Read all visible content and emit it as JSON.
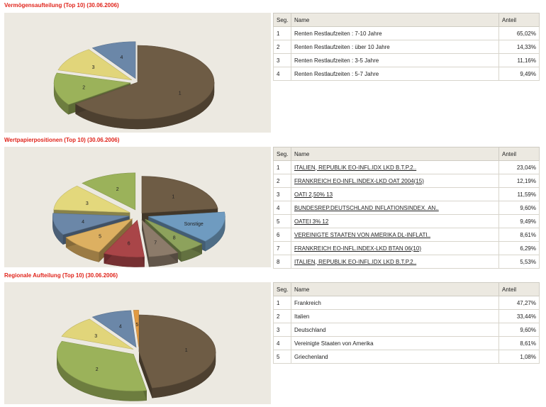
{
  "sections": [
    {
      "title": "Vermögensaufteilung (Top 10) (30.06.2006)",
      "headers": {
        "seg": "Seg.",
        "name": "Name",
        "value": "Anteil"
      },
      "rows": [
        {
          "seg": "1",
          "name": "Renten Restlaufzeiten : 7-10 Jahre",
          "value": "65,02%"
        },
        {
          "seg": "2",
          "name": "Renten Restlaufzeiten : über 10 Jahre",
          "value": "14,33%"
        },
        {
          "seg": "3",
          "name": "Renten Restlaufzeiten : 3-5 Jahre",
          "value": "11,16%"
        },
        {
          "seg": "4",
          "name": "Renten Restlaufzeiten : 5-7 Jahre",
          "value": "9,49%"
        }
      ]
    },
    {
      "title": "Wertpapierpositionen (Top 10) (30.06.2006)",
      "headers": {
        "seg": "Seg.",
        "name": "Name",
        "value": "Anteil"
      },
      "rows": [
        {
          "seg": "1",
          "name": "ITALIEN, REPUBLIK EO-INFL.IDX LKD B.T.P.2..",
          "value": "23,04%"
        },
        {
          "seg": "2",
          "name": "FRANKREICH EO-INFL.INDEX-LKD OAT 2004(15)",
          "value": "12,19%"
        },
        {
          "seg": "3",
          "name": "OATI 2,50% 13",
          "value": "11,59%"
        },
        {
          "seg": "4",
          "name": "BUNDESREP.DEUTSCHLAND INFLATIONSINDEX. AN..",
          "value": "9,60%"
        },
        {
          "seg": "5",
          "name": "OATEI 3% 12",
          "value": "9,49%"
        },
        {
          "seg": "6",
          "name": "VEREINIGTE STAATEN VON AMERIKA DL-INFLATI..",
          "value": "8,61%"
        },
        {
          "seg": "7",
          "name": "FRANKREICH EO-INFL.INDEX-LKD BTAN 06(10)",
          "value": "6,29%"
        },
        {
          "seg": "8",
          "name": "ITALIEN, REPUBLIK EO-INFL.IDX LKD B.T.P.2..",
          "value": "5,53%"
        }
      ]
    },
    {
      "title": "Regionale Aufteilung (Top 10) (30.06.2006)",
      "headers": {
        "seg": "Seg.",
        "name": "Name",
        "value": "Anteil"
      },
      "rows": [
        {
          "seg": "1",
          "name": "Frankreich",
          "value": "47,27%"
        },
        {
          "seg": "2",
          "name": "Italien",
          "value": "33,44%"
        },
        {
          "seg": "3",
          "name": "Deutschland",
          "value": "9,60%"
        },
        {
          "seg": "4",
          "name": "Vereinigte Staaten von Amerika",
          "value": "8,61%"
        },
        {
          "seg": "5",
          "name": "Griechenland",
          "value": "1,08%"
        }
      ]
    }
  ],
  "chart_data": [
    {
      "type": "pie",
      "labels": [
        "1",
        "2",
        "3",
        "4"
      ],
      "values": [
        65.02,
        14.33,
        11.16,
        9.49
      ],
      "colors": [
        "#6e5c45",
        "#9bb25a",
        "#e1d57a",
        "#6b87a8"
      ]
    },
    {
      "type": "pie",
      "labels": [
        "1",
        "Sonstige",
        "8",
        "7",
        "6",
        "5",
        "4",
        "3",
        "2"
      ],
      "values": [
        23.04,
        13.66,
        5.53,
        6.29,
        8.61,
        9.49,
        9.6,
        11.59,
        12.19
      ],
      "colors": [
        "#6e5c45",
        "#6f9bc0",
        "#8da25c",
        "#8c7b6a",
        "#a94548",
        "#ddb061",
        "#6b87a8",
        "#e3d87c",
        "#9bb25a"
      ]
    },
    {
      "type": "pie",
      "labels": [
        "1",
        "2",
        "3",
        "4",
        "5"
      ],
      "values": [
        47.27,
        33.44,
        9.6,
        8.61,
        1.08
      ],
      "colors": [
        "#6e5c45",
        "#9bb25a",
        "#e1d57a",
        "#6b87a8",
        "#e19a42"
      ]
    }
  ]
}
